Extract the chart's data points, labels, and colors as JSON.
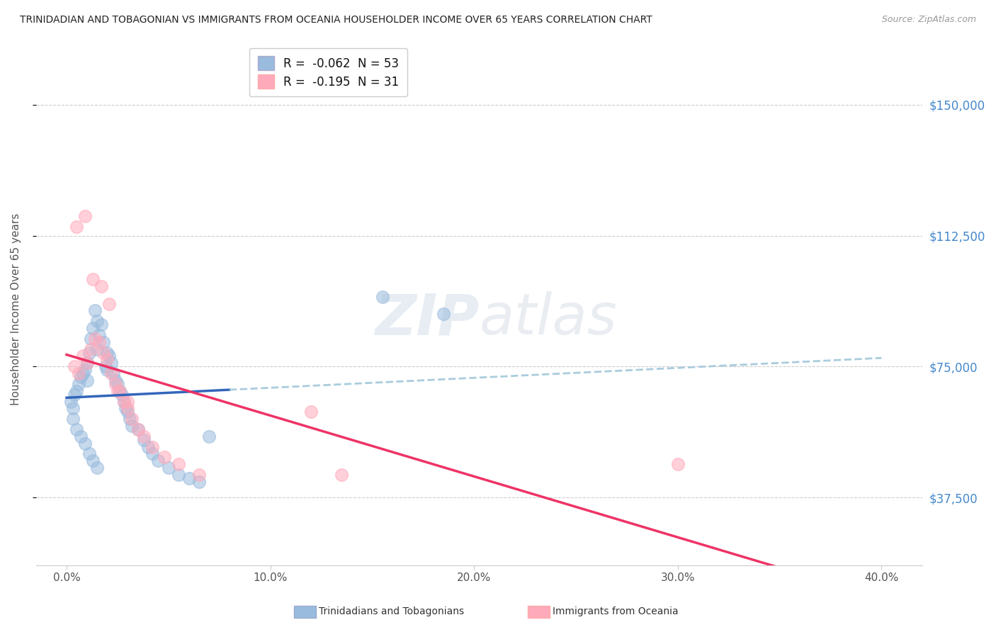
{
  "title": "TRINIDADIAN AND TOBAGONIAN VS IMMIGRANTS FROM OCEANIA HOUSEHOLDER INCOME OVER 65 YEARS CORRELATION CHART",
  "source": "Source: ZipAtlas.com",
  "ylabel": "Householder Income Over 65 years",
  "xlabel_ticks": [
    "0.0%",
    "10.0%",
    "20.0%",
    "30.0%",
    "40.0%"
  ],
  "xlabel_vals": [
    0.0,
    10.0,
    20.0,
    30.0,
    40.0
  ],
  "ylabel_ticks": [
    "$150,000",
    "$112,500",
    "$75,000",
    "$37,500"
  ],
  "ylabel_vals": [
    150000,
    112500,
    75000,
    37500
  ],
  "xlim": [
    -1.5,
    42.0
  ],
  "ylim": [
    18000,
    165000
  ],
  "blue_R": -0.062,
  "blue_N": 53,
  "pink_R": -0.195,
  "pink_N": 31,
  "blue_color": "#99BBDD",
  "pink_color": "#FFAABB",
  "blue_line_color": "#3366BB",
  "pink_line_color": "#EE3366",
  "dash_color": "#AACCDD",
  "legend_label_blue": "Trinidadians and Tobagonians",
  "legend_label_pink": "Immigrants from Oceania",
  "watermark_zip": "ZIP",
  "watermark_atlas": "atlas",
  "grid_color": "#CCCCCC",
  "bg_color": "#FFFFFF",
  "blue_x": [
    0.2,
    0.3,
    0.4,
    0.5,
    0.6,
    0.7,
    0.8,
    0.9,
    1.0,
    1.0,
    1.1,
    1.2,
    1.3,
    1.4,
    1.5,
    1.5,
    1.6,
    1.7,
    1.8,
    1.9,
    2.0,
    2.0,
    2.1,
    2.2,
    2.3,
    2.4,
    2.5,
    2.6,
    2.7,
    2.8,
    2.9,
    3.0,
    3.1,
    3.2,
    3.5,
    3.8,
    4.0,
    4.2,
    4.5,
    5.0,
    5.5,
    6.0,
    6.5,
    7.0,
    0.3,
    0.5,
    0.7,
    0.9,
    1.1,
    1.3,
    1.5,
    15.5,
    18.5
  ],
  "blue_y": [
    65000,
    63000,
    67000,
    68000,
    70000,
    72000,
    73000,
    74000,
    76000,
    71000,
    79000,
    83000,
    86000,
    91000,
    88000,
    80000,
    84000,
    87000,
    82000,
    75000,
    79000,
    74000,
    78000,
    76000,
    73000,
    71000,
    70000,
    68000,
    67000,
    65000,
    63000,
    62000,
    60000,
    58000,
    57000,
    54000,
    52000,
    50000,
    48000,
    46000,
    44000,
    43000,
    42000,
    55000,
    60000,
    57000,
    55000,
    53000,
    50000,
    48000,
    46000,
    95000,
    90000
  ],
  "pink_x": [
    0.4,
    0.6,
    0.8,
    1.0,
    1.2,
    1.4,
    1.6,
    1.8,
    2.0,
    2.2,
    2.4,
    2.6,
    2.8,
    3.0,
    3.2,
    3.5,
    3.8,
    4.2,
    4.8,
    5.5,
    6.5,
    0.5,
    0.9,
    1.3,
    1.7,
    2.1,
    2.5,
    3.0,
    12.0,
    13.5,
    30.0
  ],
  "pink_y": [
    75000,
    73000,
    78000,
    76000,
    80000,
    83000,
    82000,
    79000,
    77000,
    73000,
    70000,
    68000,
    65000,
    63000,
    60000,
    57000,
    55000,
    52000,
    49000,
    47000,
    44000,
    115000,
    118000,
    100000,
    98000,
    93000,
    68000,
    65000,
    62000,
    44000,
    47000
  ]
}
